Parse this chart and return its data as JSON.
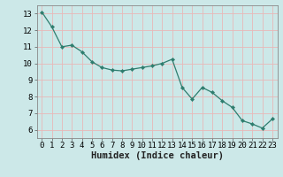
{
  "x": [
    0,
    1,
    2,
    3,
    4,
    5,
    6,
    7,
    8,
    9,
    10,
    11,
    12,
    13,
    14,
    15,
    16,
    17,
    18,
    19,
    20,
    21,
    22,
    23
  ],
  "y": [
    13.1,
    12.2,
    11.0,
    11.1,
    10.7,
    10.1,
    9.75,
    9.6,
    9.55,
    9.65,
    9.75,
    9.85,
    10.0,
    10.25,
    8.55,
    7.85,
    8.55,
    8.25,
    7.75,
    7.35,
    6.55,
    6.35,
    6.1,
    6.65
  ],
  "line_color": "#2e7d6e",
  "marker": "D",
  "marker_size": 2.2,
  "bg_color": "#cce8e8",
  "grid_color": "#b0d8d8",
  "xlabel": "Humidex (Indice chaleur)",
  "xlim": [
    -0.5,
    23.5
  ],
  "ylim": [
    5.5,
    13.5
  ],
  "yticks": [
    6,
    7,
    8,
    9,
    10,
    11,
    12,
    13
  ],
  "xticks": [
    0,
    1,
    2,
    3,
    4,
    5,
    6,
    7,
    8,
    9,
    10,
    11,
    12,
    13,
    14,
    15,
    16,
    17,
    18,
    19,
    20,
    21,
    22,
    23
  ],
  "xlabel_fontsize": 7.5,
  "tick_fontsize": 6.5,
  "spine_color": "#888888",
  "tick_color": "#555555"
}
